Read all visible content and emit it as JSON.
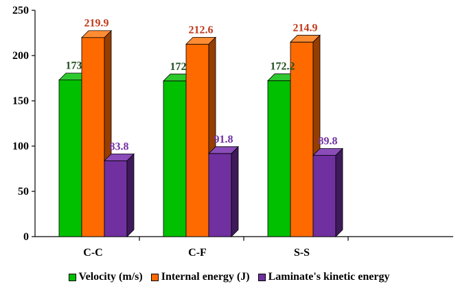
{
  "chart_data": {
    "type": "bar",
    "style": "3d-clustered-column",
    "categories": [
      "C-C",
      "C-F",
      "S-S"
    ],
    "series": [
      {
        "name": "Velocity (m/s)",
        "values": [
          173,
          172,
          172.2
        ],
        "labels": [
          "173",
          "172",
          "172.2"
        ],
        "color": "#00c000",
        "side_color": "#006b00",
        "top_color": "#2ec92e",
        "label_color": "#1f4e1f"
      },
      {
        "name": "Internal energy (J)",
        "values": [
          219.9,
          212.6,
          214.9
        ],
        "labels": [
          "219.9",
          "212.6",
          "214.9"
        ],
        "color": "#ff6a00",
        "side_color": "#963e00",
        "top_color": "#ff8c33",
        "label_color": "#c0391b"
      },
      {
        "name": "Laminate's kinetic energy",
        "values": [
          83.8,
          91.8,
          89.8
        ],
        "labels": [
          "83.8",
          "91.8",
          "89.8"
        ],
        "color": "#7030a0",
        "side_color": "#3e1a5a",
        "top_color": "#8a4cb8",
        "label_color": "#7030a0"
      }
    ],
    "ylim": [
      0,
      250
    ],
    "yticks": [
      "0",
      "50",
      "100",
      "150",
      "200",
      "250"
    ],
    "grid": false,
    "legend_position": "bottom"
  }
}
